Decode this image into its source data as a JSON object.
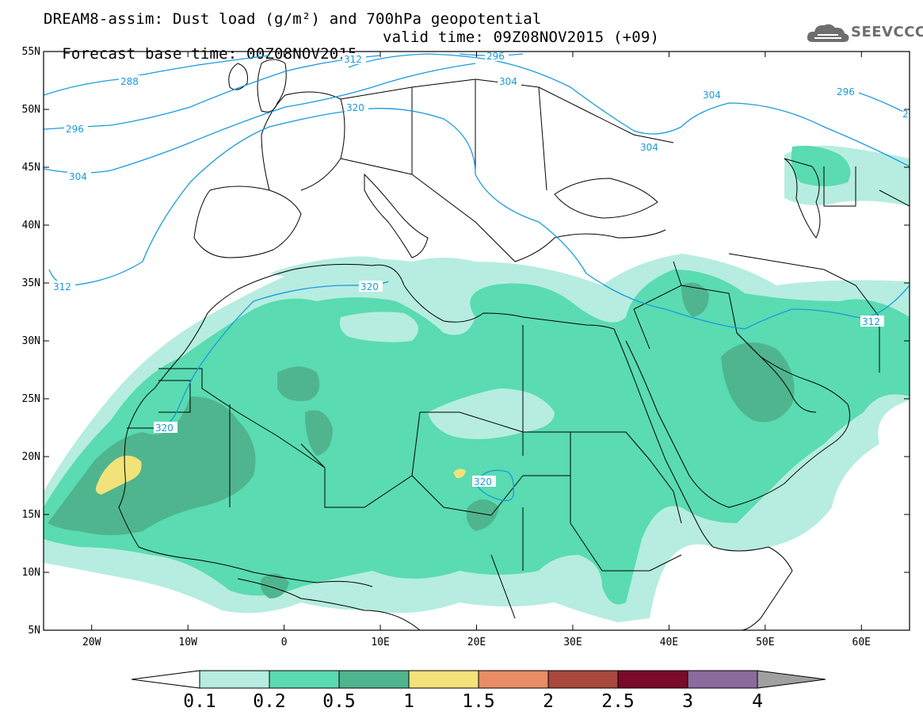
{
  "header": {
    "line1": "DREAM8-assim: Dust load (g/m²) and 700hPa geopotential",
    "line2_left": "Forecast base time: 00Z08NOV2015",
    "line2_right": "valid time: 09Z08NOV2015 (+09)"
  },
  "logo": {
    "text": "SEEVCCC",
    "icon": "cloud-icon"
  },
  "map": {
    "lon_range": [
      -25,
      65
    ],
    "lat_range": [
      5,
      55
    ],
    "lat_ticks": [
      "55N",
      "50N",
      "45N",
      "40N",
      "35N",
      "30N",
      "25N",
      "20N",
      "15N",
      "10N",
      "5N"
    ],
    "lon_ticks": [
      "20W",
      "10W",
      "0",
      "10E",
      "20E",
      "30E",
      "40E",
      "50E",
      "60E"
    ],
    "contour_labels": [
      "288",
      "296",
      "304",
      "312",
      "320",
      "304",
      "296",
      "304",
      "320",
      "312",
      "304",
      "296",
      "320",
      "312",
      "2"
    ]
  },
  "colorbar": {
    "labels": [
      "0.1",
      "0.2",
      "0.5",
      "1",
      "1.5",
      "2",
      "2.5",
      "3",
      "4"
    ],
    "colors": [
      "#ffffff",
      "#b6ede0",
      "#5adbb1",
      "#4fb58f",
      "#f2e27a",
      "#e98d66",
      "#a9483c",
      "#7a0a2a",
      "#8b6a9e",
      "#a0a0a0"
    ]
  },
  "colors": {
    "dust_01": "#b6ede0",
    "dust_02": "#5adbb1",
    "dust_05": "#4fb58f",
    "dust_1": "#f2e27a",
    "contour": "#1a9be0"
  }
}
